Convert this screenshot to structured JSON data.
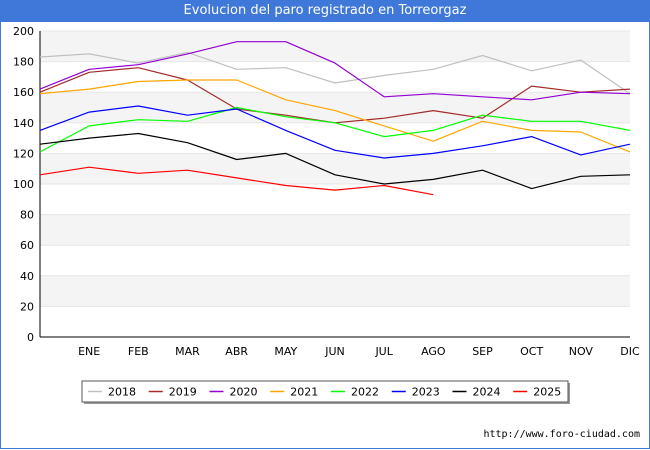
{
  "header": {
    "title": "Evolucion del paro registrado en Torreorgaz"
  },
  "footer": {
    "url": "http://www.foro-ciudad.com"
  },
  "chart_data": {
    "type": "line",
    "title": "Evolucion del paro registrado en Torreorgaz",
    "categories": [
      "",
      "ENE",
      "FEB",
      "MAR",
      "ABR",
      "MAY",
      "JUN",
      "JUL",
      "AGO",
      "SEP",
      "OCT",
      "NOV",
      "DIC"
    ],
    "ylim": [
      0,
      200
    ],
    "yticks": [
      0,
      20,
      40,
      60,
      80,
      100,
      120,
      140,
      160,
      180,
      200
    ],
    "grid": "horizontal bands",
    "legend_position": "bottom",
    "series": [
      {
        "name": "2018",
        "color": "#c0c0c0",
        "values": [
          183,
          185,
          179,
          186,
          175,
          176,
          166,
          171,
          175,
          184,
          174,
          181,
          159
        ]
      },
      {
        "name": "2019",
        "color": "#a52a2a",
        "values": [
          160,
          173,
          176,
          168,
          149,
          145,
          140,
          143,
          148,
          143,
          164,
          160,
          162
        ]
      },
      {
        "name": "2020",
        "color": "#9400d3",
        "values": [
          162,
          175,
          178,
          185,
          193,
          193,
          179,
          157,
          159,
          157,
          155,
          160,
          159
        ]
      },
      {
        "name": "2021",
        "color": "#ffa500",
        "values": [
          159,
          162,
          167,
          168,
          168,
          155,
          148,
          138,
          128,
          141,
          135,
          134,
          121
        ]
      },
      {
        "name": "2022",
        "color": "#00ff00",
        "values": [
          121,
          138,
          142,
          141,
          150,
          144,
          140,
          131,
          135,
          145,
          141,
          141,
          135
        ]
      },
      {
        "name": "2023",
        "color": "#0000ff",
        "values": [
          135,
          147,
          151,
          145,
          149,
          135,
          122,
          117,
          120,
          125,
          131,
          119,
          126
        ]
      },
      {
        "name": "2024",
        "color": "#000000",
        "values": [
          126,
          130,
          133,
          127,
          116,
          120,
          106,
          100,
          103,
          109,
          97,
          105,
          106
        ]
      },
      {
        "name": "2025",
        "color": "#ff0000",
        "values": [
          106,
          111,
          107,
          109,
          104,
          99,
          96,
          99,
          93,
          null,
          null,
          null,
          null
        ]
      }
    ]
  }
}
